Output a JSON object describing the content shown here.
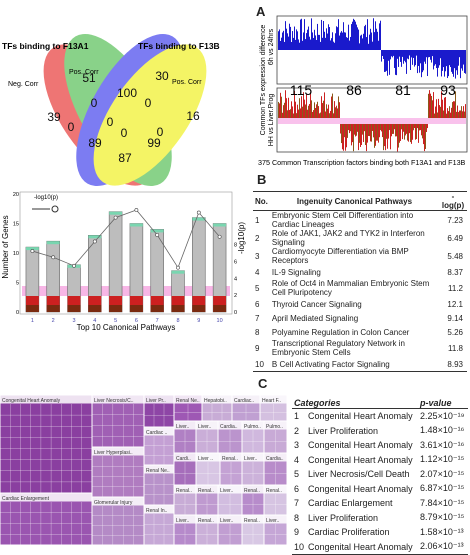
{
  "panels": {
    "A": "A",
    "B": "B",
    "C": "C"
  },
  "venn": {
    "title_left": "TFs binding to F13A1",
    "title_right": "TFs binding to F13B",
    "label_neg": "Neg. Corr",
    "label_pos_left": "Pos. Corr",
    "label_pos_right": "Pos. Corr",
    "values": {
      "v39": "39",
      "v51": "51",
      "v30": "30",
      "v16": "16",
      "v100": "100",
      "v0a": "0",
      "v0b": "0",
      "v0c": "0",
      "v0d": "0",
      "v0e": "0",
      "v0f": "0",
      "v89": "89",
      "v99": "99",
      "v87": "87"
    }
  },
  "panelA": {
    "ylabel_top": "Common TFs expression difference",
    "ylabel_top2": "6h vs 24hrs",
    "ylabel_bot": "HH vs Liver.Prog",
    "counts": [
      "115",
      "86",
      "81",
      "93"
    ],
    "caption": "375 Common Transcription factors binding both F13A1 and F13B"
  },
  "barchart": {
    "ylabel_left": "Number of Genes",
    "ylabel_right": "-log10(p)",
    "legend": "-log10(p)",
    "xlabel": "Top 10 Canonical Pathways",
    "left_ticks": [
      "0",
      "5",
      "10",
      "15",
      "20"
    ],
    "right_ticks": [
      "0",
      "2",
      "4",
      "6",
      "8"
    ]
  },
  "chart_data": {
    "type": "bar",
    "categories": [
      "1",
      "2",
      "3",
      "4",
      "5",
      "6",
      "7",
      "8",
      "9",
      "10"
    ],
    "series": [
      {
        "values": [
          11,
          12,
          8,
          13,
          17,
          15,
          14,
          7,
          16,
          15
        ]
      }
    ],
    "line": {
      "values": [
        7.23,
        6.49,
        5.48,
        8.37,
        11.2,
        12.1,
        9.14,
        5.26,
        11.8,
        8.93
      ]
    },
    "xlabel": "Top 10 Canonical Pathways",
    "ylabel": "Number of Genes",
    "ylabel_right": "-log10(p)"
  },
  "tableB": {
    "headers": [
      "No.",
      "Ingenuity Canonical Pathways",
      "-log(p)"
    ],
    "rows": [
      {
        "no": "1",
        "name": "Embryonic Stem Cell Differentiation into Cardiac Lineages",
        "val": "7.23"
      },
      {
        "no": "2",
        "name": "Role of JAK1, JAK2 and TYK2 in Interferon Signaling",
        "val": "6.49"
      },
      {
        "no": "3",
        "name": "Cardiomyocyte Differentiation via BMP Receptors",
        "val": "5.48"
      },
      {
        "no": "4",
        "name": "IL-9 Signaling",
        "val": "8.37"
      },
      {
        "no": "5",
        "name": "Role of Oct4 in Mammalian Embryonic Stem Cell Pluripotency",
        "val": "11.2"
      },
      {
        "no": "6",
        "name": "Thyroid Cancer Signaling",
        "val": "12.1"
      },
      {
        "no": "7",
        "name": "April Mediated Signaling",
        "val": "9.14"
      },
      {
        "no": "8",
        "name": "Polyamine Regulation in Colon Cancer",
        "val": "5.26"
      },
      {
        "no": "9",
        "name": "Transcriptional Regulatory Network in Embryonic Stem Cells",
        "val": "11.8"
      },
      {
        "no": "10",
        "name": "B Cell Activating Factor Signaling",
        "val": "8.93"
      }
    ]
  },
  "treemap": {
    "t1": "Congenital Heart Anomaly",
    "t2": "Liver Necrosis/Cell Death",
    "t3": "Liver Prolifer.",
    "t4": "Renal Necros.",
    "t5": "Hepatobiliary..",
    "t6": "Cardiac..",
    "t7": "Liver Hyperplasia/Hyperprol.",
    "t8": "Cardiac Dysfu..",
    "t9": "Heart Failure",
    "t10": "Cardiac..",
    "t11": "Pulmo..",
    "t12": "Liver Stea..",
    "t13": "Liver Dama..",
    "t14": "Cardiac Hi..",
    "t15": "Renal Nephritis",
    "t16": "Renal Inflamm..",
    "t17": "Cardiac Enlargement",
    "t18": "Glomerular Injury",
    "t19": "Renal Inflamm..",
    "t20": "Liver Dis..",
    "t21": "Renal..",
    "t22": "Liver.."
  },
  "tableC": {
    "headers": [
      "Categories",
      "p-value"
    ],
    "rows": [
      {
        "no": "1",
        "name": "Congenital Heart Anomaly",
        "val": "2.25×10⁻¹⁹"
      },
      {
        "no": "2",
        "name": "Liver Proliferation",
        "val": "1.48×10⁻¹⁶"
      },
      {
        "no": "3",
        "name": "Congenital Heart Anomaly",
        "val": "3.61×10⁻¹⁶"
      },
      {
        "no": "4",
        "name": "Congenital Heart Anomaly",
        "val": "1.12×10⁻¹⁵"
      },
      {
        "no": "5",
        "name": "Liver Necrosis/Cell Death",
        "val": "2.07×10⁻¹⁵"
      },
      {
        "no": "6",
        "name": "Congenital Heart Anomaly",
        "val": "6.87×10⁻¹⁵"
      },
      {
        "no": "7",
        "name": "Cardiac Enlargement",
        "val": "7.84×10⁻¹⁵"
      },
      {
        "no": "8",
        "name": "Liver Proliferation",
        "val": "8.79×10⁻¹⁵"
      },
      {
        "no": "9",
        "name": "Cardiac Proliferation",
        "val": "1.58×10⁻¹³"
      },
      {
        "no": "10",
        "name": "Congenital Heart Anomaly",
        "val": "2.06×10⁻¹³"
      }
    ]
  }
}
